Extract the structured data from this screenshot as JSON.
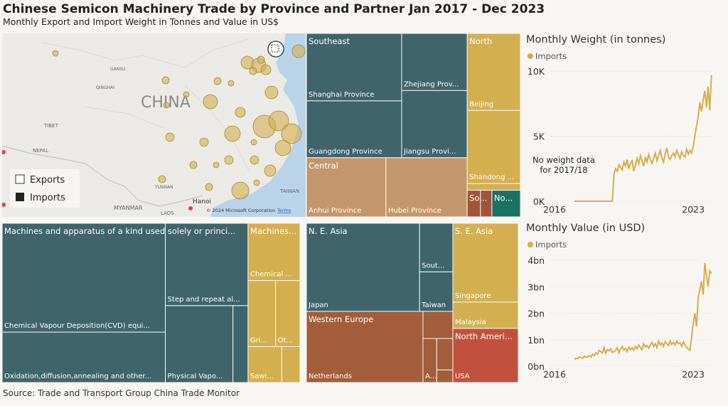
{
  "title": "Chinese Semicon Machinery Trade by Province and Partner Jan 2017 - Dec 2023",
  "subtitle": "Monthly Export and Import Weight in Tonnes and Value in US$",
  "source": "Source: Trade and Transport Group China Trade Monitor",
  "map": {
    "labels": [
      "CHINA",
      "TIBET",
      "NEPAL",
      "MYANMAR",
      "LAOS",
      "TAIWAN",
      "Hanoi",
      "YUNNAN",
      "GANSU",
      "QINGHAI"
    ],
    "copyright": "© 2024 Microsoft Corporation",
    "terms": "Terms",
    "legend": [
      "Exports",
      "Imports"
    ],
    "color": "#d4af4f",
    "imports": [
      16,
      25,
      16,
      100,
      81,
      100,
      49,
      25,
      81,
      81,
      25,
      16,
      16,
      49,
      256,
      196,
      196,
      121,
      121,
      36,
      36,
      16,
      36,
      36,
      64,
      25,
      16,
      25,
      25,
      144,
      16,
      25
    ]
  },
  "treemaps": [
    {
      "groups": [
        {
          "name": "Southeast",
          "color": "#3f646c",
          "children": [
            {
              "name": "Shanghai Province",
              "value": 127
            },
            {
              "name": "Guangdong Province",
              "value": 107
            },
            {
              "name": "Zhejiang Prov...",
              "value": 74
            },
            {
              "name": "Jiangsu Provi...",
              "value": 87
            }
          ]
        },
        {
          "name": "Central",
          "color": "#c4966b",
          "children": [
            {
              "name": "Anhui Province",
              "value": 93
            },
            {
              "name": "Hubei Province",
              "value": 95
            }
          ]
        },
        {
          "name": "North",
          "color": "#d4af4f",
          "children": [
            {
              "name": "Beijing",
              "value": 81
            },
            {
              "name": "Shandong ...",
              "value": 77
            },
            {
              "name": null,
              "value": 7
            }
          ]
        },
        {
          "name": "So...",
          "color": "#a0553a",
          "children": [
            {
              "name": null,
              "value": 7
            },
            {
              "name": null,
              "value": 6
            }
          ]
        },
        {
          "name": "No...",
          "color": "#1b7262",
          "children": [
            {
              "name": null,
              "value": 15
            }
          ]
        }
      ]
    },
    {
      "groups": [
        {
          "name": "Machines and apparatus of a kind used solely or princi...",
          "color": "#3f646c",
          "children": [
            {
              "name": "Chemical Vapour Deposition(CVD) equi...",
              "value": 352
            },
            {
              "name": "Oxidation,diffusion,annealing and other...",
              "value": 163
            },
            {
              "name": "Step and repeat al...",
              "value": 135
            },
            {
              "name": "Physical Vapo...",
              "value": 103
            },
            {
              "name": null,
              "value": 23
            }
          ]
        },
        {
          "name": "Machines...",
          "color": "#d4af4f",
          "children": [
            {
              "name": "Chemical ...",
              "value": 59
            },
            {
              "name": "Gri...",
              "value": 36
            },
            {
              "name": "Ot...",
              "value": 32
            },
            {
              "name": "Sawi...",
              "value": 24
            },
            {
              "name": null,
              "value": 13
            }
          ]
        }
      ]
    },
    {
      "groups": [
        {
          "name": "N. E. Asia",
          "color": "#3f646c",
          "children": [
            {
              "name": "Japan",
              "value": 197
            },
            {
              "name": "Sout...",
              "value": 32
            },
            {
              "name": "Taiwan",
              "value": 26
            }
          ]
        },
        {
          "name": "Western Europe",
          "color": "#a35d3a",
          "children": [
            {
              "name": "Netherlands",
              "value": 164
            },
            {
              "name": null,
              "value": 16
            },
            {
              "name": "A...",
              "value": 12
            },
            {
              "name": null,
              "value": 10
            },
            {
              "name": null,
              "value": 4
            }
          ]
        },
        {
          "name": "S. E. Asia",
          "color": "#d4af4f",
          "children": [
            {
              "name": "Singapore",
              "value": 102
            },
            {
              "name": "Malaysia",
              "value": 34
            }
          ]
        },
        {
          "name": "North Ameri...",
          "color": "#c1513d",
          "children": [
            {
              "name": "USA",
              "value": 70
            }
          ]
        }
      ]
    }
  ],
  "chart_data": [
    {
      "type": "line",
      "title": "Monthly Weight (in tonnes)",
      "annotation": "No weight data for 2017/18",
      "x": [
        2017,
        2017.083,
        2017.167,
        2017.25,
        2017.333,
        2017.417,
        2017.5,
        2017.583,
        2017.667,
        2017.75,
        2017.833,
        2017.917,
        2018,
        2018.083,
        2018.167,
        2018.25,
        2018.333,
        2018.417,
        2018.5,
        2018.583,
        2018.667,
        2018.75,
        2018.833,
        2018.917,
        2019,
        2019.083,
        2019.167,
        2019.25,
        2019.333,
        2019.417,
        2019.5,
        2019.583,
        2019.667,
        2019.75,
        2019.833,
        2019.917,
        2020,
        2020.083,
        2020.167,
        2020.25,
        2020.333,
        2020.417,
        2020.5,
        2020.583,
        2020.667,
        2020.75,
        2020.833,
        2020.917,
        2021,
        2021.083,
        2021.167,
        2021.25,
        2021.333,
        2021.417,
        2021.5,
        2021.583,
        2021.667,
        2021.75,
        2021.833,
        2021.917,
        2022,
        2022.083,
        2022.167,
        2022.25,
        2022.333,
        2022.417,
        2022.5,
        2022.583,
        2022.667,
        2022.75,
        2022.833,
        2022.917,
        2023,
        2023.083,
        2023.167,
        2023.25,
        2023.333,
        2023.417,
        2023.5,
        2023.583,
        2023.667,
        2023.75,
        2023.833,
        2023.917
      ],
      "series": [
        {
          "name": "Imports",
          "color": "#d4af4f",
          "values": [
            0,
            0,
            0,
            0,
            0,
            0,
            0,
            0,
            0,
            0,
            0,
            0,
            0,
            0,
            0,
            0,
            0,
            0,
            0,
            0,
            0,
            0,
            0,
            0,
            2100,
            2500,
            2300,
            2800,
            2600,
            2400,
            3000,
            2700,
            3200,
            2500,
            2900,
            3100,
            2300,
            2800,
            3300,
            2900,
            3500,
            3100,
            2700,
            3400,
            3000,
            3600,
            3200,
            2900,
            3300,
            3700,
            3100,
            3500,
            3900,
            3300,
            3000,
            3600,
            4100,
            3400,
            3200,
            3500,
            3700,
            3400,
            3900,
            3600,
            3300,
            3800,
            3500,
            3400,
            4000,
            3600,
            3900,
            3700,
            4200,
            5000,
            5800,
            6500,
            7600,
            6900,
            7800,
            8500,
            7200,
            8800,
            7000,
            9700
          ]
        }
      ],
      "xlim": [
        2016,
        2024
      ],
      "xticks": [
        2016,
        2023
      ],
      "ylim": [
        0,
        10000
      ],
      "yticks": [
        {
          "value": 0,
          "label": "0K"
        },
        {
          "value": 5000,
          "label": "5K"
        },
        {
          "value": 10000,
          "label": "10K"
        }
      ],
      "grid": true
    },
    {
      "type": "line",
      "title": "Monthly Value (in USD)",
      "x": [
        2017,
        2017.083,
        2017.167,
        2017.25,
        2017.333,
        2017.417,
        2017.5,
        2017.583,
        2017.667,
        2017.75,
        2017.833,
        2017.917,
        2018,
        2018.083,
        2018.167,
        2018.25,
        2018.333,
        2018.417,
        2018.5,
        2018.583,
        2018.667,
        2018.75,
        2018.833,
        2018.917,
        2019,
        2019.083,
        2019.167,
        2019.25,
        2019.333,
        2019.417,
        2019.5,
        2019.583,
        2019.667,
        2019.75,
        2019.833,
        2019.917,
        2020,
        2020.083,
        2020.167,
        2020.25,
        2020.333,
        2020.417,
        2020.5,
        2020.583,
        2020.667,
        2020.75,
        2020.833,
        2020.917,
        2021,
        2021.083,
        2021.167,
        2021.25,
        2021.333,
        2021.417,
        2021.5,
        2021.583,
        2021.667,
        2021.75,
        2021.833,
        2021.917,
        2022,
        2022.083,
        2022.167,
        2022.25,
        2022.333,
        2022.417,
        2022.5,
        2022.583,
        2022.667,
        2022.75,
        2022.833,
        2022.917,
        2023,
        2023.083,
        2023.167,
        2023.25,
        2023.333,
        2023.417,
        2023.5,
        2023.583,
        2023.667,
        2023.75,
        2023.833,
        2023.917
      ],
      "series": [
        {
          "name": "Imports",
          "color": "#d4af4f",
          "values": [
            250000000.0,
            300000000.0,
            280000000.0,
            350000000.0,
            320000000.0,
            300000000.0,
            380000000.0,
            330000000.0,
            360000000.0,
            400000000.0,
            340000000.0,
            450000000.0,
            400000000.0,
            500000000.0,
            450000000.0,
            600000000.0,
            550000000.0,
            500000000.0,
            700000000.0,
            480000000.0,
            620000000.0,
            580000000.0,
            660000000.0,
            520000000.0,
            550000000.0,
            600000000.0,
            700000000.0,
            500000000.0,
            650000000.0,
            750000000.0,
            600000000.0,
            680000000.0,
            550000000.0,
            720000000.0,
            620000000.0,
            700000000.0,
            600000000.0,
            750000000.0,
            650000000.0,
            800000000.0,
            700000000.0,
            620000000.0,
            850000000.0,
            720000000.0,
            780000000.0,
            680000000.0,
            800000000.0,
            900000000.0,
            750000000.0,
            850000000.0,
            700000000.0,
            950000000.0,
            800000000.0,
            880000000.0,
            750000000.0,
            920000000.0,
            850000000.0,
            780000000.0,
            950000000.0,
            820000000.0,
            900000000.0,
            800000000.0,
            950000000.0,
            850000000.0,
            880000000.0,
            750000000.0,
            920000000.0,
            800000000.0,
            700000000.0,
            650000000.0,
            600000000.0,
            1100000000.0,
            1600000000.0,
            2000000000.0,
            1500000000.0,
            2600000000.0,
            2900000000.0,
            3200000000.0,
            2700000000.0,
            3900000000.0,
            3400000000.0,
            3000000000.0,
            3600000000.0,
            3500000000.0
          ]
        }
      ],
      "xlim": [
        2016,
        2024
      ],
      "xticks": [
        2016,
        2023
      ],
      "ylim": [
        0,
        4000000000
      ],
      "yticks": [
        {
          "value": 0,
          "label": "0bn"
        },
        {
          "value": 1000000000,
          "label": "1bn"
        },
        {
          "value": 2000000000,
          "label": "2bn"
        },
        {
          "value": 3000000000,
          "label": "3bn"
        },
        {
          "value": 4000000000,
          "label": "4bn"
        }
      ],
      "grid": true
    }
  ]
}
